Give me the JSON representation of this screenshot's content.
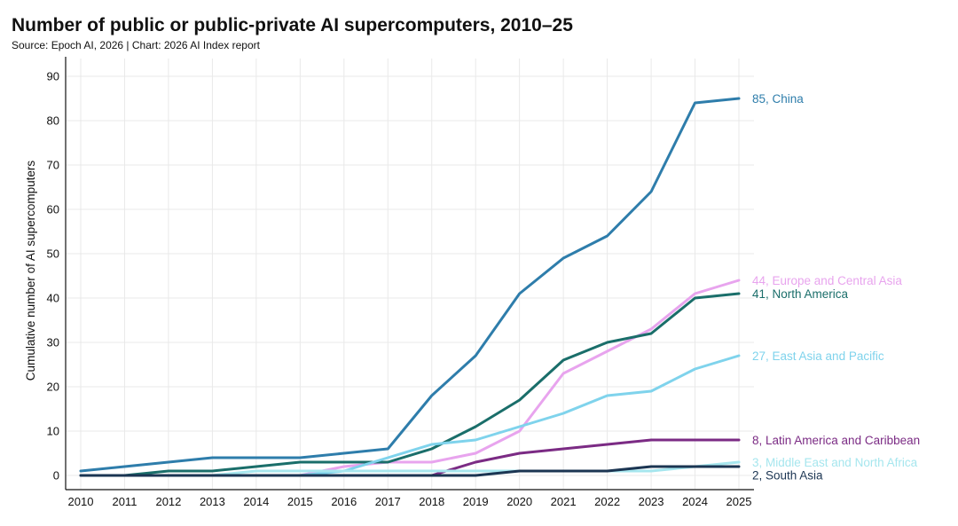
{
  "header": {
    "title": "Number of public or public-private AI supercomputers, 2010–25",
    "subtitle": "Source: Epoch AI, 2026 | Chart: 2026 AI Index report"
  },
  "chart_data": {
    "type": "line",
    "ylabel": "Cumulative number of AI supercomputers",
    "xlabel": "",
    "x": [
      "2010",
      "2011",
      "2012",
      "2013",
      "2014",
      "2015",
      "2016",
      "2017",
      "2018",
      "2019",
      "2020",
      "2021",
      "2022",
      "2023",
      "2024",
      "2025"
    ],
    "ylim": [
      0,
      90
    ],
    "yticks": [
      "0",
      "10",
      "20",
      "30",
      "40",
      "50",
      "60",
      "70",
      "80",
      "90"
    ],
    "grid": true,
    "legend": "end-of-line labels",
    "series": [
      {
        "name": "China",
        "color": "#2e7dab",
        "label": "85, China",
        "values": [
          1,
          2,
          3,
          4,
          4,
          4,
          5,
          6,
          18,
          27,
          41,
          49,
          54,
          64,
          84,
          85
        ]
      },
      {
        "name": "Europe and Central Asia",
        "color": "#e8a4ee",
        "label": "44, Europe and Central Asia",
        "values": [
          0,
          0,
          0,
          0,
          0,
          0,
          2,
          3,
          3,
          5,
          10,
          23,
          28,
          33,
          41,
          44
        ]
      },
      {
        "name": "North America",
        "color": "#1a6e6a",
        "label": "41, North America",
        "values": [
          0,
          0,
          1,
          1,
          2,
          3,
          3,
          3,
          6,
          11,
          17,
          26,
          30,
          32,
          40,
          41
        ]
      },
      {
        "name": "East Asia and Pacific",
        "color": "#7fd3ec",
        "label": "27, East Asia and Pacific",
        "values": [
          0,
          0,
          0,
          0,
          0,
          0,
          1,
          4,
          7,
          8,
          11,
          14,
          18,
          19,
          24,
          27
        ]
      },
      {
        "name": "Latin America and Caribbean",
        "color": "#7b2b84",
        "label": "8, Latin America and Caribbean",
        "values": [
          0,
          0,
          0,
          0,
          0,
          0,
          0,
          0,
          0,
          3,
          5,
          6,
          7,
          8,
          8,
          8
        ]
      },
      {
        "name": "Middle East and North Africa",
        "color": "#a6e6ee",
        "label": "3, Middle East and North Africa",
        "values": [
          0,
          0,
          0,
          0,
          1,
          1,
          1,
          1,
          1,
          1,
          1,
          1,
          1,
          1,
          2,
          3
        ]
      },
      {
        "name": "South Asia",
        "color": "#1b3552",
        "label": "2, South Asia",
        "values": [
          0,
          0,
          0,
          0,
          0,
          0,
          0,
          0,
          0,
          0,
          1,
          1,
          1,
          2,
          2,
          2
        ]
      }
    ]
  }
}
